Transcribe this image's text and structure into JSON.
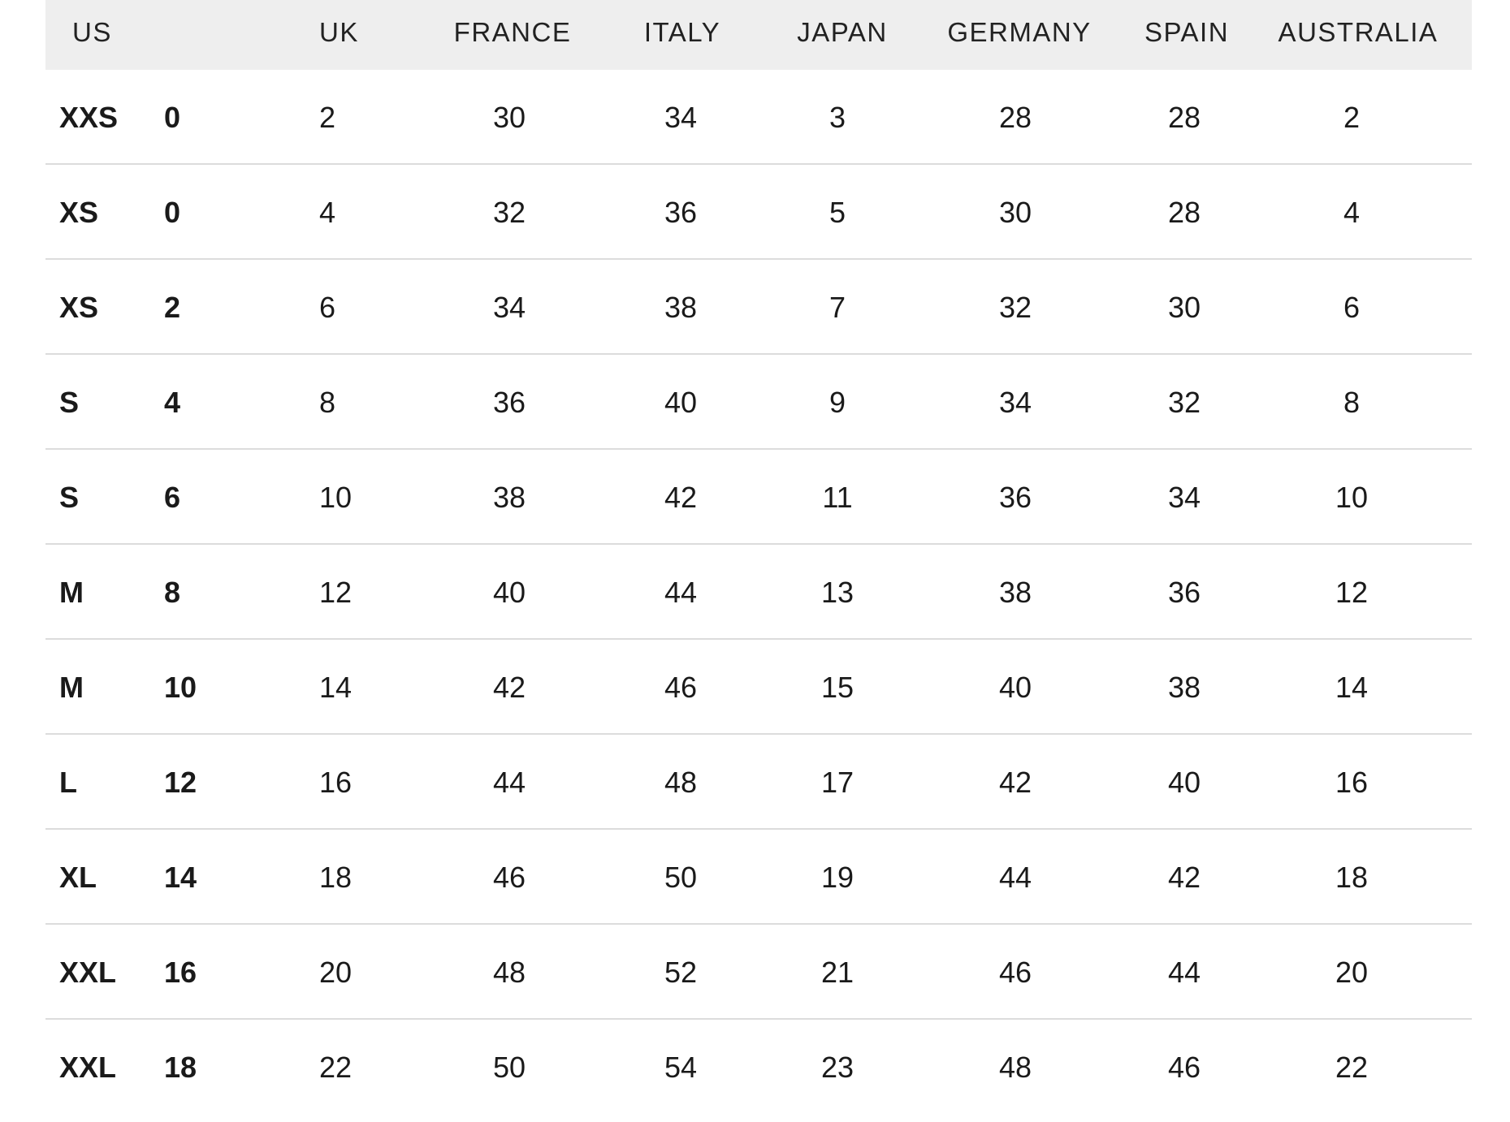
{
  "headers": [
    "US",
    "UK",
    "FRANCE",
    "ITALY",
    "JAPAN",
    "GERMANY",
    "SPAIN",
    "AUSTRALIA"
  ],
  "rows": [
    {
      "letter": "XXS",
      "us": "0",
      "uk": "2",
      "france": "30",
      "italy": "34",
      "japan": "3",
      "germany": "28",
      "spain": "28",
      "australia": "2"
    },
    {
      "letter": "XS",
      "us": "0",
      "uk": "4",
      "france": "32",
      "italy": "36",
      "japan": "5",
      "germany": "30",
      "spain": "28",
      "australia": "4"
    },
    {
      "letter": "XS",
      "us": "2",
      "uk": "6",
      "france": "34",
      "italy": "38",
      "japan": "7",
      "germany": "32",
      "spain": "30",
      "australia": "6"
    },
    {
      "letter": "S",
      "us": "4",
      "uk": "8",
      "france": "36",
      "italy": "40",
      "japan": "9",
      "germany": "34",
      "spain": "32",
      "australia": "8"
    },
    {
      "letter": "S",
      "us": "6",
      "uk": "10",
      "france": "38",
      "italy": "42",
      "japan": "11",
      "germany": "36",
      "spain": "34",
      "australia": "10"
    },
    {
      "letter": "M",
      "us": "8",
      "uk": "12",
      "france": "40",
      "italy": "44",
      "japan": "13",
      "germany": "38",
      "spain": "36",
      "australia": "12"
    },
    {
      "letter": "M",
      "us": "10",
      "uk": "14",
      "france": "42",
      "italy": "46",
      "japan": "15",
      "germany": "40",
      "spain": "38",
      "australia": "14"
    },
    {
      "letter": "L",
      "us": "12",
      "uk": "16",
      "france": "44",
      "italy": "48",
      "japan": "17",
      "germany": "42",
      "spain": "40",
      "australia": "16"
    },
    {
      "letter": "XL",
      "us": "14",
      "uk": "18",
      "france": "46",
      "italy": "50",
      "japan": "19",
      "germany": "44",
      "spain": "42",
      "australia": "18"
    },
    {
      "letter": "XXL",
      "us": "16",
      "uk": "20",
      "france": "48",
      "italy": "52",
      "japan": "21",
      "germany": "46",
      "spain": "44",
      "australia": "20"
    },
    {
      "letter": "XXL",
      "us": "18",
      "uk": "22",
      "france": "50",
      "italy": "54",
      "japan": "23",
      "germany": "48",
      "spain": "46",
      "australia": "22"
    }
  ],
  "colors": {
    "header_bg": "#eeeeee",
    "divider": "#dcdcdc",
    "text": "#1a1a1a"
  }
}
